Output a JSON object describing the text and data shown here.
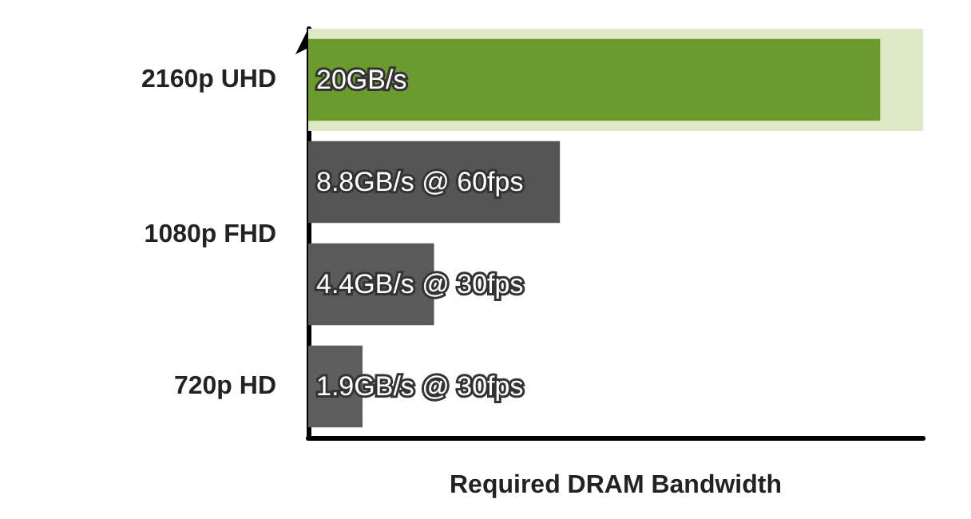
{
  "chart_data": {
    "type": "bar",
    "orientation": "horizontal",
    "categories": [
      "2160p UHD",
      "1080p FHD",
      null,
      "720p HD"
    ],
    "values": [
      20,
      8.8,
      4.4,
      1.9
    ],
    "value_labels": [
      "20GB/s",
      "8.8GB/s @ 60fps",
      "4.4GB/s @ 30fps",
      "1.9GB/s @ 30fps"
    ],
    "colors": [
      "#6b9b2c",
      "#555555",
      "#5a5a5a",
      "#5e5e5e"
    ],
    "xlim": [
      0,
      21.5
    ],
    "xlabel": "Required DRAM Bandwidth",
    "bands": [
      {
        "axis": "y",
        "from": "2160p UHD",
        "to": "2160p UHD",
        "color": "#dde8c6"
      }
    ],
    "tick_labels": "y",
    "grid": false
  }
}
